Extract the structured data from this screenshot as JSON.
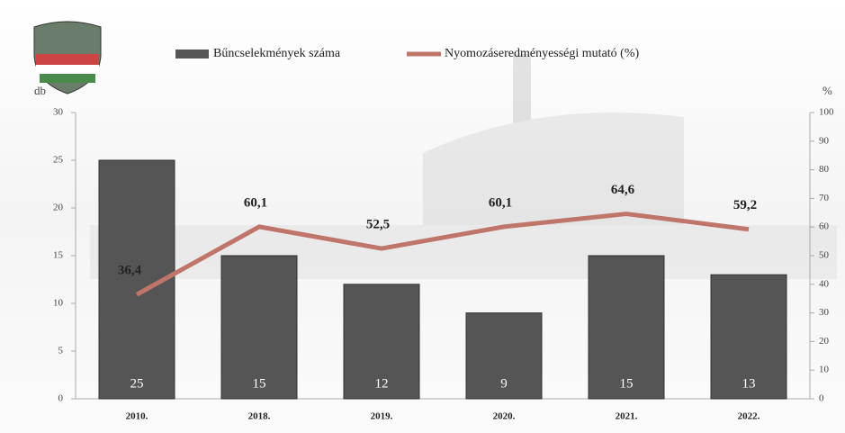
{
  "chart_data": {
    "type": "combo",
    "categories": [
      "2010.",
      "2018.",
      "2019.",
      "2020.",
      "2021.",
      "2022."
    ],
    "series": [
      {
        "name": "Bűncselekmények száma",
        "type": "bar",
        "color": "#555555",
        "values": [
          25,
          15,
          12,
          9,
          15,
          13
        ]
      },
      {
        "name": "Nyomozáseredményességi mutató (%)",
        "type": "line",
        "axis": "y2",
        "color": "#c0756b",
        "values": [
          36.4,
          60.1,
          52.5,
          60.1,
          64.6,
          59.2
        ],
        "value_labels": [
          "36,4",
          "60,1",
          "52,5",
          "60,1",
          "64,6",
          "59,2"
        ]
      }
    ],
    "ylabel": "db",
    "y2label": "%",
    "ylim": [
      0,
      30
    ],
    "yticks": [
      0,
      5,
      10,
      15,
      20,
      25,
      30
    ],
    "y2lim": [
      0,
      100
    ],
    "y2ticks": [
      0,
      10,
      20,
      30,
      40,
      50,
      60,
      70,
      80,
      90,
      100
    ],
    "grid": false
  }
}
